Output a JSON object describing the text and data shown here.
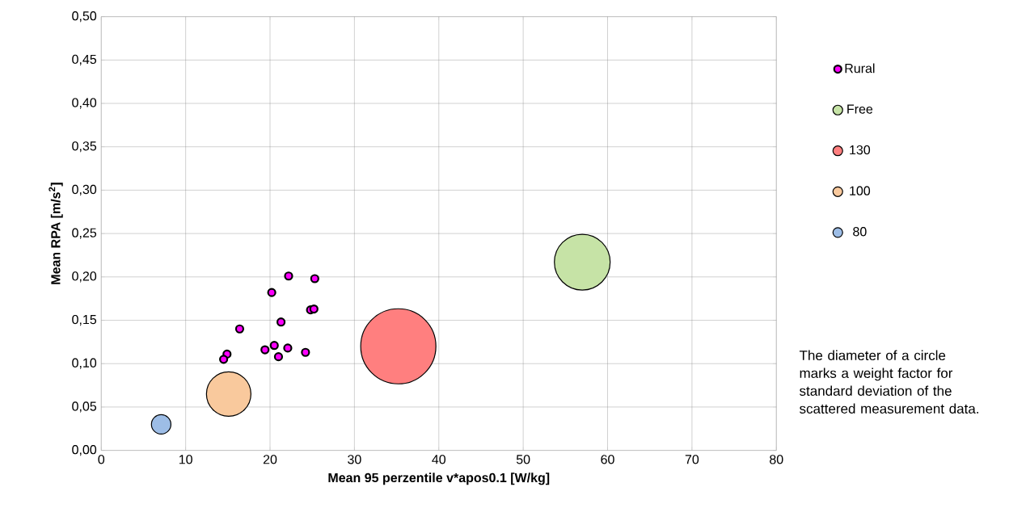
{
  "chart_data": {
    "type": "bubble",
    "xlabel": "Mean 95 perzentile v*apos0.1 [W/kg]",
    "ylabel": "Mean RPA [m/s$^{2}$]",
    "xlim": [
      0,
      80
    ],
    "ylim": [
      0,
      0.5
    ],
    "xticks": [
      0,
      10,
      20,
      30,
      40,
      50,
      60,
      70,
      80
    ],
    "yticks": [
      {
        "value": 0,
        "label": "0,00"
      },
      {
        "value": 0.05,
        "label": "0,05"
      },
      {
        "value": 0.1,
        "label": "0,10"
      },
      {
        "value": 0.15,
        "label": "0,15"
      },
      {
        "value": 0.2,
        "label": "0,20"
      },
      {
        "value": 0.25,
        "label": "0,25"
      },
      {
        "value": 0.3,
        "label": "0,30"
      },
      {
        "value": 0.35,
        "label": "0,35"
      },
      {
        "value": 0.4,
        "label": "0,40"
      },
      {
        "value": 0.45,
        "label": "0,45"
      },
      {
        "value": 0.5,
        "label": "0,50"
      }
    ],
    "grid": true,
    "legend": "right",
    "series": [
      {
        "name": "Rural",
        "type": "scatter",
        "color": "#ff00ff",
        "x": [
          22.2,
          25.3,
          20.2,
          24.8,
          25.2,
          21.3,
          16.4,
          20.5,
          19.4,
          22.1,
          24.2,
          21.0,
          14.9,
          14.5
        ],
        "values": [
          0.201,
          0.198,
          0.182,
          0.162,
          0.163,
          0.148,
          0.14,
          0.121,
          0.116,
          0.118,
          0.113,
          0.108,
          0.111,
          0.105
        ]
      },
      {
        "name": "Free",
        "color": "#c6e3a6",
        "x": [
          57.0
        ],
        "values": [
          0.217
        ],
        "sizes": [
          0.55
        ]
      },
      {
        "name": "130",
        "color": "#ff7f7f",
        "x": [
          35.2
        ],
        "values": [
          0.12
        ],
        "sizes": [
          1
        ]
      },
      {
        "name": "100",
        "color": "#f9c99d",
        "x": [
          15.1
        ],
        "values": [
          0.065
        ],
        "sizes": [
          0.35
        ]
      },
      {
        "name": "80",
        "color": "#9dbde6",
        "x": [
          7.1
        ],
        "values": [
          0.03
        ],
        "sizes": [
          0.067
        ]
      }
    ],
    "annotations": [
      "The diameter of a circle marks a weight factor for standard deviation of the scattered measurement data."
    ]
  }
}
